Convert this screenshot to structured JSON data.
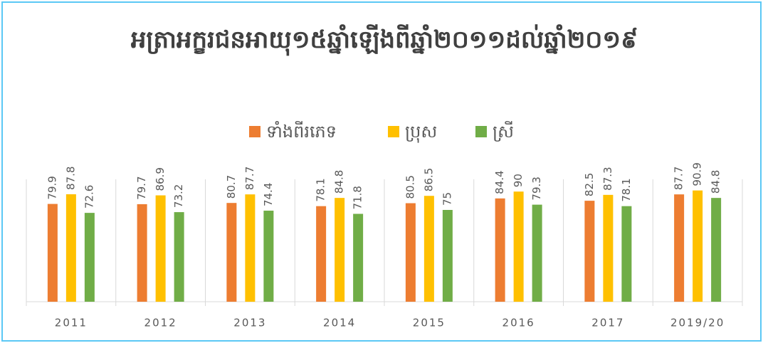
{
  "chart_data": {
    "type": "bar",
    "title": "អត្រាអក្ខរជនអាយុ១៥ឆ្នាំឡើងពីឆ្នាំ២០១១ដល់ឆ្នាំ២០១៩",
    "categories": [
      "2011",
      "2012",
      "2013",
      "2014",
      "2015",
      "2016",
      "2017",
      "2019/20"
    ],
    "series": [
      {
        "name": "ទាំងពីរភេទ",
        "color": "#ED7D31",
        "values": [
          79.9,
          79.7,
          80.7,
          78.1,
          80.5,
          84.4,
          82.5,
          87.7
        ]
      },
      {
        "name": "ប្រុស",
        "color": "#FFC000",
        "values": [
          87.8,
          86.9,
          87.7,
          84.8,
          86.5,
          90,
          87.3,
          90.9
        ]
      },
      {
        "name": "ស្រី",
        "color": "#70AD47",
        "values": [
          72.6,
          73.2,
          74.4,
          71.8,
          75,
          79.3,
          78.1,
          84.8
        ]
      }
    ],
    "ylim": [
      0,
      100
    ],
    "legend": "top"
  }
}
